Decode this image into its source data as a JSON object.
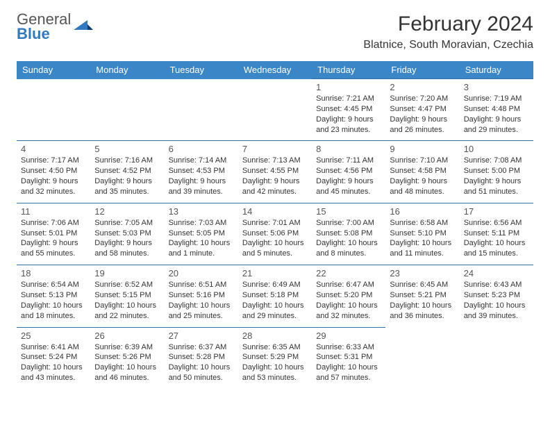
{
  "logo": {
    "line1": "General",
    "line2": "Blue"
  },
  "title": "February 2024",
  "location": "Blatnice, South Moravian, Czechia",
  "colors": {
    "header_bg": "#3b86c6",
    "header_text": "#ffffff",
    "row_border": "#2f6ea8",
    "text": "#333333",
    "logo_blue": "#2f7ac0",
    "logo_gray": "#555555",
    "background": "#ffffff"
  },
  "weekdays": [
    "Sunday",
    "Monday",
    "Tuesday",
    "Wednesday",
    "Thursday",
    "Friday",
    "Saturday"
  ],
  "rows": [
    [
      null,
      null,
      null,
      null,
      {
        "n": "1",
        "sunrise": "7:21 AM",
        "sunset": "4:45 PM",
        "dl1": "Daylight: 9 hours",
        "dl2": "and 23 minutes."
      },
      {
        "n": "2",
        "sunrise": "7:20 AM",
        "sunset": "4:47 PM",
        "dl1": "Daylight: 9 hours",
        "dl2": "and 26 minutes."
      },
      {
        "n": "3",
        "sunrise": "7:19 AM",
        "sunset": "4:48 PM",
        "dl1": "Daylight: 9 hours",
        "dl2": "and 29 minutes."
      }
    ],
    [
      {
        "n": "4",
        "sunrise": "7:17 AM",
        "sunset": "4:50 PM",
        "dl1": "Daylight: 9 hours",
        "dl2": "and 32 minutes."
      },
      {
        "n": "5",
        "sunrise": "7:16 AM",
        "sunset": "4:52 PM",
        "dl1": "Daylight: 9 hours",
        "dl2": "and 35 minutes."
      },
      {
        "n": "6",
        "sunrise": "7:14 AM",
        "sunset": "4:53 PM",
        "dl1": "Daylight: 9 hours",
        "dl2": "and 39 minutes."
      },
      {
        "n": "7",
        "sunrise": "7:13 AM",
        "sunset": "4:55 PM",
        "dl1": "Daylight: 9 hours",
        "dl2": "and 42 minutes."
      },
      {
        "n": "8",
        "sunrise": "7:11 AM",
        "sunset": "4:56 PM",
        "dl1": "Daylight: 9 hours",
        "dl2": "and 45 minutes."
      },
      {
        "n": "9",
        "sunrise": "7:10 AM",
        "sunset": "4:58 PM",
        "dl1": "Daylight: 9 hours",
        "dl2": "and 48 minutes."
      },
      {
        "n": "10",
        "sunrise": "7:08 AM",
        "sunset": "5:00 PM",
        "dl1": "Daylight: 9 hours",
        "dl2": "and 51 minutes."
      }
    ],
    [
      {
        "n": "11",
        "sunrise": "7:06 AM",
        "sunset": "5:01 PM",
        "dl1": "Daylight: 9 hours",
        "dl2": "and 55 minutes."
      },
      {
        "n": "12",
        "sunrise": "7:05 AM",
        "sunset": "5:03 PM",
        "dl1": "Daylight: 9 hours",
        "dl2": "and 58 minutes."
      },
      {
        "n": "13",
        "sunrise": "7:03 AM",
        "sunset": "5:05 PM",
        "dl1": "Daylight: 10 hours",
        "dl2": "and 1 minute."
      },
      {
        "n": "14",
        "sunrise": "7:01 AM",
        "sunset": "5:06 PM",
        "dl1": "Daylight: 10 hours",
        "dl2": "and 5 minutes."
      },
      {
        "n": "15",
        "sunrise": "7:00 AM",
        "sunset": "5:08 PM",
        "dl1": "Daylight: 10 hours",
        "dl2": "and 8 minutes."
      },
      {
        "n": "16",
        "sunrise": "6:58 AM",
        "sunset": "5:10 PM",
        "dl1": "Daylight: 10 hours",
        "dl2": "and 11 minutes."
      },
      {
        "n": "17",
        "sunrise": "6:56 AM",
        "sunset": "5:11 PM",
        "dl1": "Daylight: 10 hours",
        "dl2": "and 15 minutes."
      }
    ],
    [
      {
        "n": "18",
        "sunrise": "6:54 AM",
        "sunset": "5:13 PM",
        "dl1": "Daylight: 10 hours",
        "dl2": "and 18 minutes."
      },
      {
        "n": "19",
        "sunrise": "6:52 AM",
        "sunset": "5:15 PM",
        "dl1": "Daylight: 10 hours",
        "dl2": "and 22 minutes."
      },
      {
        "n": "20",
        "sunrise": "6:51 AM",
        "sunset": "5:16 PM",
        "dl1": "Daylight: 10 hours",
        "dl2": "and 25 minutes."
      },
      {
        "n": "21",
        "sunrise": "6:49 AM",
        "sunset": "5:18 PM",
        "dl1": "Daylight: 10 hours",
        "dl2": "and 29 minutes."
      },
      {
        "n": "22",
        "sunrise": "6:47 AM",
        "sunset": "5:20 PM",
        "dl1": "Daylight: 10 hours",
        "dl2": "and 32 minutes."
      },
      {
        "n": "23",
        "sunrise": "6:45 AM",
        "sunset": "5:21 PM",
        "dl1": "Daylight: 10 hours",
        "dl2": "and 36 minutes."
      },
      {
        "n": "24",
        "sunrise": "6:43 AM",
        "sunset": "5:23 PM",
        "dl1": "Daylight: 10 hours",
        "dl2": "and 39 minutes."
      }
    ],
    [
      {
        "n": "25",
        "sunrise": "6:41 AM",
        "sunset": "5:24 PM",
        "dl1": "Daylight: 10 hours",
        "dl2": "and 43 minutes."
      },
      {
        "n": "26",
        "sunrise": "6:39 AM",
        "sunset": "5:26 PM",
        "dl1": "Daylight: 10 hours",
        "dl2": "and 46 minutes."
      },
      {
        "n": "27",
        "sunrise": "6:37 AM",
        "sunset": "5:28 PM",
        "dl1": "Daylight: 10 hours",
        "dl2": "and 50 minutes."
      },
      {
        "n": "28",
        "sunrise": "6:35 AM",
        "sunset": "5:29 PM",
        "dl1": "Daylight: 10 hours",
        "dl2": "and 53 minutes."
      },
      {
        "n": "29",
        "sunrise": "6:33 AM",
        "sunset": "5:31 PM",
        "dl1": "Daylight: 10 hours",
        "dl2": "and 57 minutes."
      },
      null,
      null
    ]
  ]
}
